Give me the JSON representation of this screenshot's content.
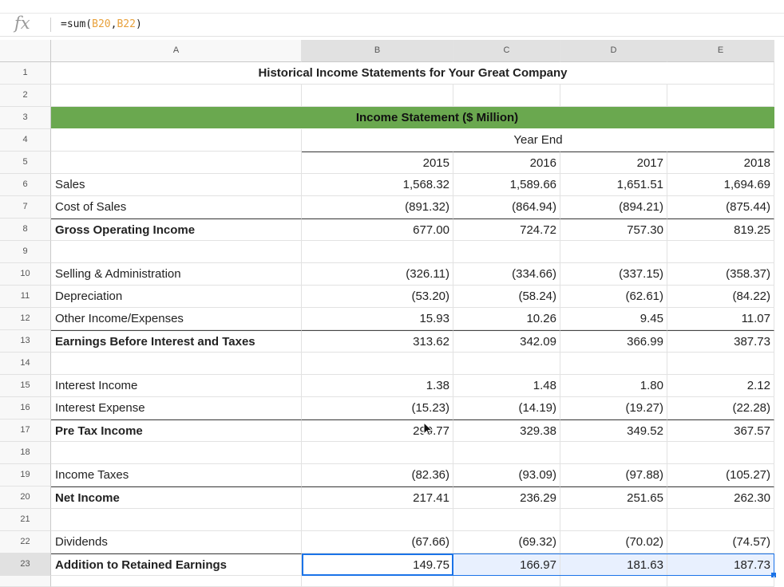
{
  "formula_bar": {
    "fx_label": "fx",
    "formula_prefix": "=sum(",
    "ref1": "B20",
    "comma": ",",
    "ref2": "B22",
    "formula_suffix": ")"
  },
  "columns": [
    "A",
    "B",
    "C",
    "D",
    "E"
  ],
  "selected_columns": [
    "B",
    "C",
    "D",
    "E"
  ],
  "title": "Historical Income Statements for Your Great Company",
  "section_header": "Income Statement ($ Million)",
  "year_end_label": "Year End",
  "years": [
    "2015",
    "2016",
    "2017",
    "2018"
  ],
  "rows": [
    {
      "num": "1"
    },
    {
      "num": "2"
    },
    {
      "num": "3"
    },
    {
      "num": "4"
    },
    {
      "num": "5"
    },
    {
      "num": "6",
      "label": "Sales",
      "values": [
        "1,568.32",
        "1,589.66",
        "1,651.51",
        "1,694.69"
      ]
    },
    {
      "num": "7",
      "label": "Cost of Sales",
      "values": [
        "(891.32)",
        "(864.94)",
        "(894.21)",
        "(875.44)"
      ]
    },
    {
      "num": "8",
      "label": "Gross Operating Income",
      "values": [
        "677.00",
        "724.72",
        "757.30",
        "819.25"
      ]
    },
    {
      "num": "9"
    },
    {
      "num": "10",
      "label": "Selling & Administration",
      "values": [
        "(326.11)",
        "(334.66)",
        "(337.15)",
        "(358.37)"
      ]
    },
    {
      "num": "11",
      "label": "Depreciation",
      "values": [
        "(53.20)",
        "(58.24)",
        "(62.61)",
        "(84.22)"
      ]
    },
    {
      "num": "12",
      "label": "Other Income/Expenses",
      "values": [
        "15.93",
        "10.26",
        "9.45",
        "11.07"
      ]
    },
    {
      "num": "13",
      "label": "Earnings Before Interest and Taxes",
      "values": [
        "313.62",
        "342.09",
        "366.99",
        "387.73"
      ]
    },
    {
      "num": "14"
    },
    {
      "num": "15",
      "label": "Interest Income",
      "values": [
        "1.38",
        "1.48",
        "1.80",
        "2.12"
      ]
    },
    {
      "num": "16",
      "label": "Interest Expense",
      "values": [
        "(15.23)",
        "(14.19)",
        "(19.27)",
        "(22.28)"
      ]
    },
    {
      "num": "17",
      "label": "Pre Tax Income",
      "values": [
        "299.77",
        "329.38",
        "349.52",
        "367.57"
      ]
    },
    {
      "num": "18"
    },
    {
      "num": "19",
      "label": "Income Taxes",
      "values": [
        "(82.36)",
        "(93.09)",
        "(97.88)",
        "(105.27)"
      ]
    },
    {
      "num": "20",
      "label": "Net Income",
      "values": [
        "217.41",
        "236.29",
        "251.65",
        "262.30"
      ]
    },
    {
      "num": "21"
    },
    {
      "num": "22",
      "label": "Dividends",
      "values": [
        "(67.66)",
        "(69.32)",
        "(70.02)",
        "(74.57)"
      ]
    },
    {
      "num": "23",
      "label": "Addition to Retained Earnings",
      "values": [
        "149.75",
        "166.97",
        "181.63",
        "187.73"
      ]
    }
  ],
  "colors": {
    "section_band": "#6aa84f",
    "selection": "#1a73e8",
    "selection_fill": "#e8f0fe",
    "formula_ref": "#e8a13c"
  }
}
